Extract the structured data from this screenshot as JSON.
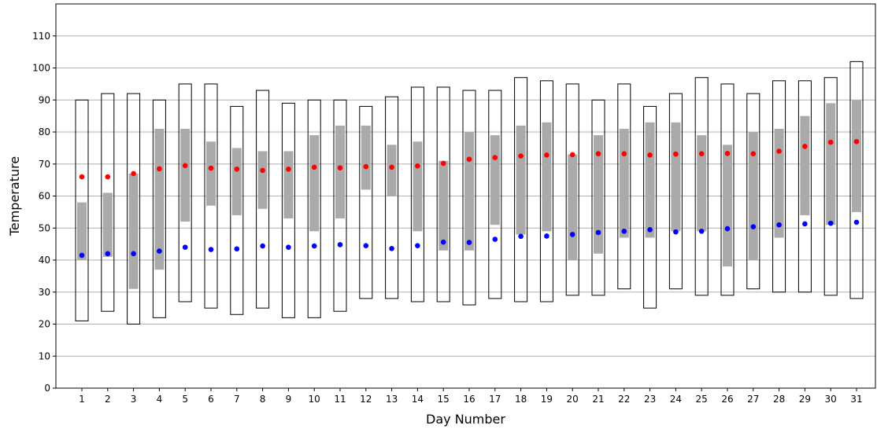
{
  "chart_data": {
    "type": "bar",
    "xlabel": "Day Number",
    "ylabel": "Temperature",
    "ylim": [
      0,
      120
    ],
    "yticks": [
      0,
      10,
      20,
      30,
      40,
      50,
      60,
      70,
      80,
      90,
      100,
      110
    ],
    "grid": "horizontal",
    "days": [
      1,
      2,
      3,
      4,
      5,
      6,
      7,
      8,
      9,
      10,
      11,
      12,
      13,
      14,
      15,
      16,
      17,
      18,
      19,
      20,
      21,
      22,
      23,
      24,
      25,
      26,
      27,
      28,
      29,
      30,
      31
    ],
    "record_low": [
      21,
      24,
      20,
      22,
      27,
      25,
      23,
      25,
      22,
      22,
      24,
      28,
      28,
      27,
      27,
      26,
      28,
      27,
      27,
      29,
      29,
      31,
      25,
      31,
      29,
      29,
      31,
      30,
      30,
      29,
      28
    ],
    "record_high": [
      90,
      92,
      92,
      90,
      95,
      95,
      88,
      93,
      89,
      90,
      90,
      88,
      91,
      94,
      94,
      93,
      93,
      97,
      96,
      95,
      90,
      95,
      88,
      92,
      97,
      95,
      92,
      96,
      96,
      97,
      102
    ],
    "actual_low": [
      40,
      41,
      31,
      37,
      52,
      57,
      54,
      56,
      53,
      49,
      53,
      62,
      60,
      49,
      43,
      43,
      51,
      48,
      49,
      40,
      42,
      47,
      47,
      49,
      49,
      38,
      40,
      47,
      54,
      51,
      55
    ],
    "actual_high": [
      58,
      61,
      67,
      81,
      81,
      77,
      75,
      74,
      74,
      79,
      82,
      82,
      76,
      77,
      71,
      80,
      79,
      82,
      83,
      73,
      79,
      81,
      83,
      83,
      79,
      76,
      80,
      81,
      85,
      89,
      90
    ],
    "avg_high": [
      66,
      66,
      67,
      68.5,
      69.5,
      68.7,
      68.4,
      68,
      68.4,
      69,
      68.8,
      69.2,
      69,
      69.4,
      70.2,
      71.5,
      72,
      72.5,
      72.8,
      72.9,
      73.2,
      73.2,
      72.8,
      73.1,
      73.2,
      73.3,
      73.2,
      74,
      75.5,
      76.8,
      77
    ],
    "avg_low": [
      41.5,
      42,
      42,
      42.8,
      44,
      43.3,
      43.5,
      44.4,
      44,
      44.4,
      44.8,
      44.5,
      43.6,
      44.5,
      45.6,
      45.5,
      46.5,
      47.4,
      47.5,
      48,
      48.6,
      49,
      49.5,
      48.8,
      49,
      49.8,
      50.4,
      51,
      51.3,
      51.5,
      51.8
    ],
    "colors": {
      "record_box": "#000000",
      "actual_bar": "#aaaaaa",
      "avg_high": "#ff0000",
      "avg_low": "#0000ff",
      "grid": "#b0b0b0"
    }
  }
}
